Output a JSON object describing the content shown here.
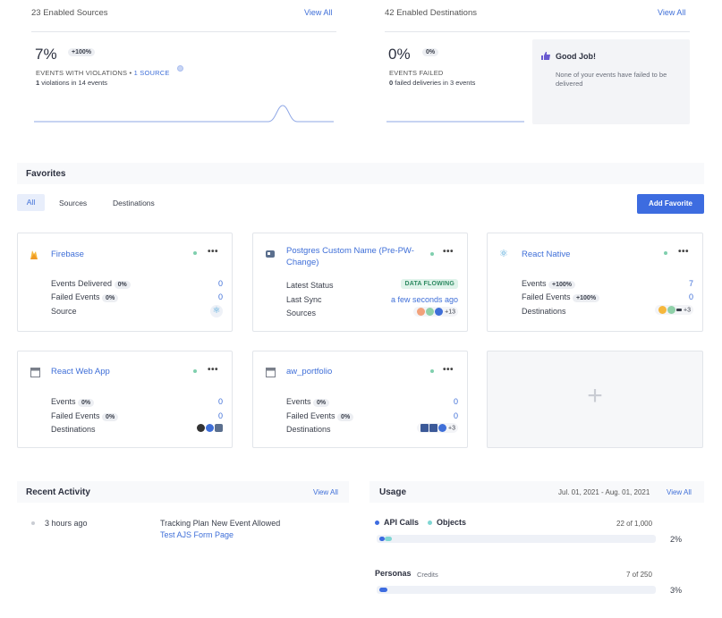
{
  "sources": {
    "heading": "23 Enabled Sources",
    "view_all": "View All",
    "percent": "7%",
    "change": "+100%",
    "violations_label": "EVENTS WITH VIOLATIONS •",
    "violations_link": "1 SOURCE",
    "detail_strong": "1",
    "detail_rest": "violations in 14 events"
  },
  "destinations": {
    "heading": "42 Enabled Destinations",
    "view_all": "View All",
    "percent": "0%",
    "change": "0%",
    "failed_label": "EVENTS FAILED",
    "detail_strong": "0",
    "detail_rest": "failed deliveries in 3 events"
  },
  "good_job": {
    "title": "Good Job!",
    "text": "None of your events have failed to be delivered"
  },
  "favorites": {
    "title": "Favorites",
    "tabs": [
      "All",
      "Sources",
      "Destinations"
    ],
    "add_button": "Add Favorite",
    "menu": "•••",
    "cards": [
      {
        "name": "Firebase",
        "rows": [
          {
            "label": "Events Delivered",
            "pill": "0%",
            "value": "0"
          },
          {
            "label": "Failed Events",
            "pill": "0%",
            "value": "0"
          },
          {
            "label": "Source",
            "pill": "",
            "value": ""
          }
        ]
      },
      {
        "name": "Postgres Custom Name (Pre-PW-Change)",
        "rows": [
          {
            "label": "Latest Status",
            "badge": "DATA FLOWING"
          },
          {
            "label": "Last Sync",
            "value": "a few seconds ago"
          },
          {
            "label": "Sources",
            "more": "+13"
          }
        ]
      },
      {
        "name": "React Native",
        "rows": [
          {
            "label": "Events",
            "pill": "+100%",
            "value": "7"
          },
          {
            "label": "Failed Events",
            "pill": "+100%",
            "value": "0"
          },
          {
            "label": "Destinations",
            "more": "+3"
          }
        ]
      },
      {
        "name": "React Web App",
        "rows": [
          {
            "label": "Events",
            "pill": "0%",
            "value": "0"
          },
          {
            "label": "Failed Events",
            "pill": "0%",
            "value": "0"
          },
          {
            "label": "Destinations",
            "more": ""
          }
        ]
      },
      {
        "name": "aw_portfolio",
        "rows": [
          {
            "label": "Events",
            "pill": "0%",
            "value": "0"
          },
          {
            "label": "Failed Events",
            "pill": "0%",
            "value": "0"
          },
          {
            "label": "Destinations",
            "more": "+3"
          }
        ]
      }
    ],
    "add_card_symbol": "+"
  },
  "recent_activity": {
    "title": "Recent Activity",
    "view_all": "View All",
    "items": [
      {
        "time": "3 hours ago",
        "event": "Tracking Plan New Event Allowed",
        "link": "Test AJS Form Page"
      }
    ]
  },
  "usage": {
    "title": "Usage",
    "date_range": "Jul. 01, 2021 - Aug. 01, 2021",
    "view_all": "View All",
    "api": {
      "label1": "API Calls",
      "label2": "Objects",
      "count": "22 of 1,000",
      "percent": "2%",
      "fill": 0.02
    },
    "personas": {
      "label": "Personas",
      "sub": "Credits",
      "count": "7 of 250",
      "percent": "3%",
      "fill": 0.03
    }
  },
  "colors": {
    "accent": "#3f6fd8",
    "green": "#7fcfae",
    "objects": "#7fd6d3"
  }
}
